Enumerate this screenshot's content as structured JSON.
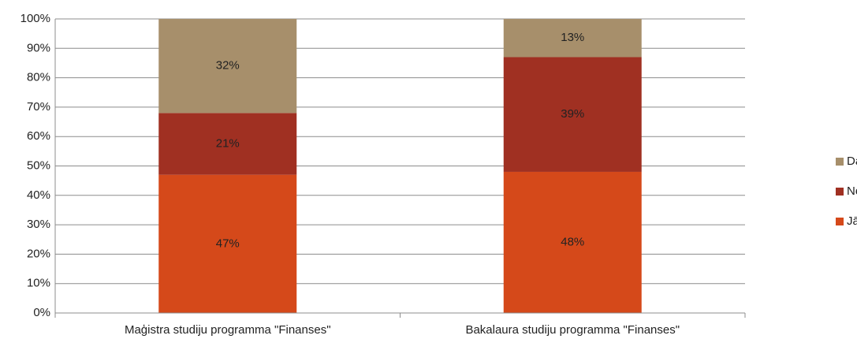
{
  "chart_data": {
    "type": "stacked_bar",
    "categories": [
      "Maģistra studiju programma \"Finanses\"",
      "Bakalaura studiju programma \"Finanses\""
    ],
    "series": [
      {
        "name": "Jā",
        "color": "#d5491a",
        "values": [
          47,
          48
        ],
        "value_labels": [
          "47%",
          "48%"
        ]
      },
      {
        "name": "Nē",
        "color": "#a03022",
        "values": [
          21,
          39
        ],
        "value_labels": [
          "21%",
          "39%"
        ]
      },
      {
        "name": "Daļēji",
        "color": "#a78f6b",
        "values": [
          32,
          13
        ],
        "value_labels": [
          "32%",
          "13%"
        ]
      }
    ],
    "ylim": [
      0,
      100
    ],
    "yticks": [
      {
        "value": 0,
        "label": "0%"
      },
      {
        "value": 10,
        "label": "10%"
      },
      {
        "value": 20,
        "label": "20%"
      },
      {
        "value": 30,
        "label": "30%"
      },
      {
        "value": 40,
        "label": "40%"
      },
      {
        "value": 50,
        "label": "50%"
      },
      {
        "value": 60,
        "label": "60%"
      },
      {
        "value": 70,
        "label": "70%"
      },
      {
        "value": 80,
        "label": "80%"
      },
      {
        "value": 90,
        "label": "90%"
      },
      {
        "value": 100,
        "label": "100%"
      }
    ],
    "grid": true,
    "legend": "right"
  }
}
